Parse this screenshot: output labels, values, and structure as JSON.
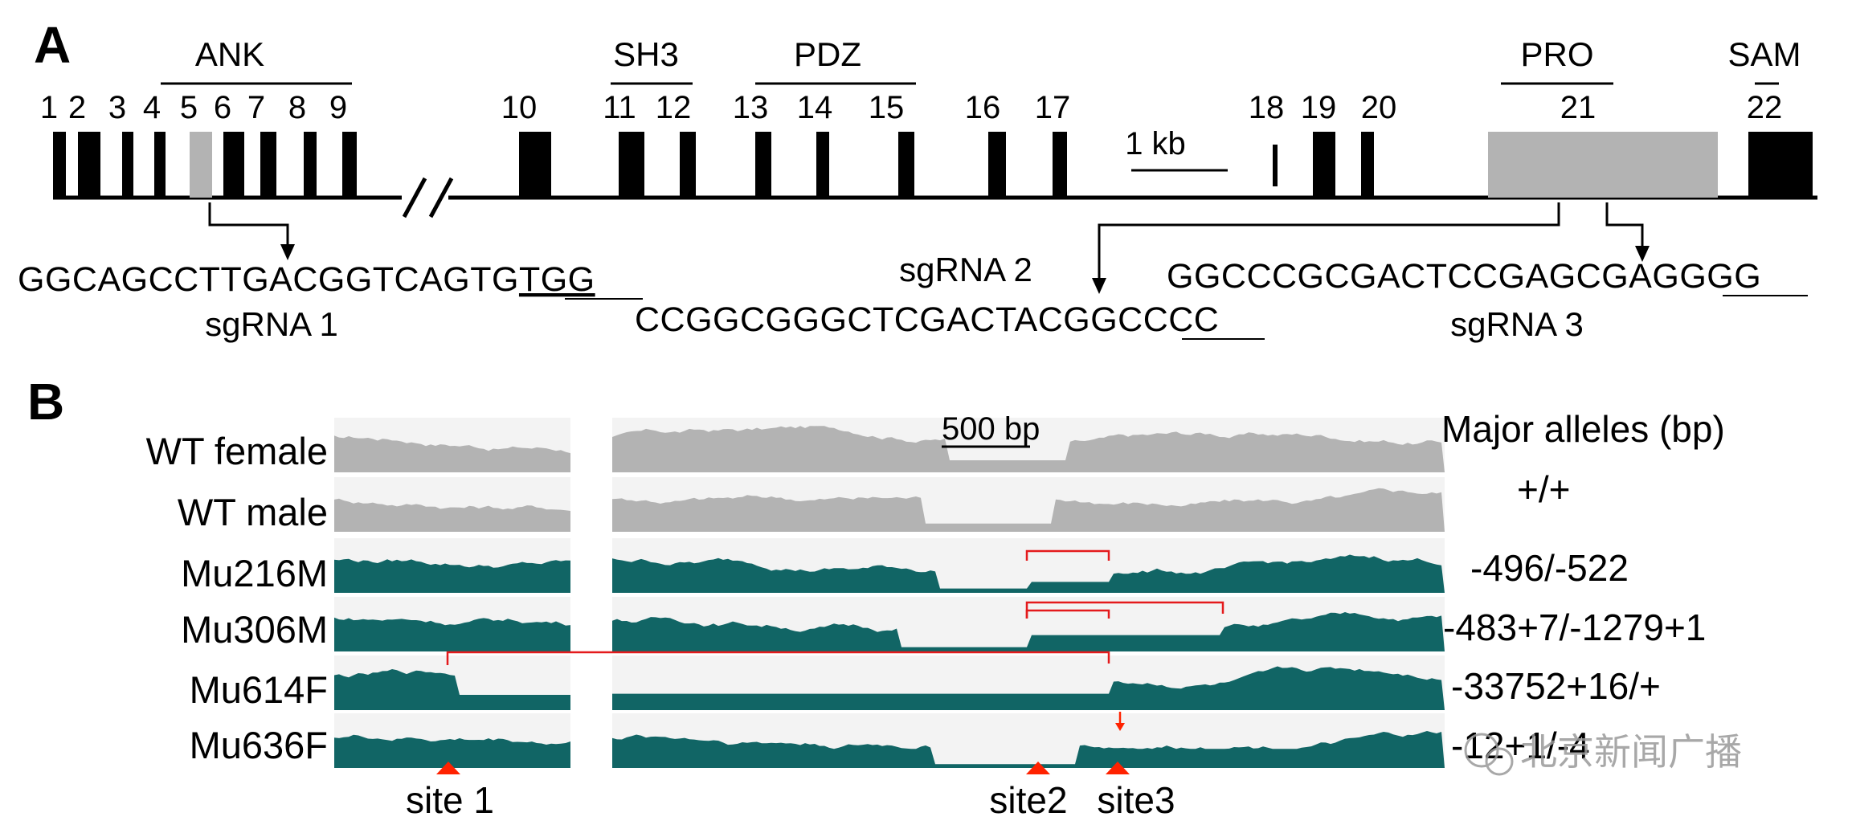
{
  "panel_a": {
    "label": "A",
    "domains": [
      {
        "name": "ANK",
        "x1": 200,
        "x2": 438
      },
      {
        "name": "SH3",
        "x1": 760,
        "x2": 862
      },
      {
        "name": "PDZ",
        "x1": 940,
        "x2": 1140
      },
      {
        "name": "PRO",
        "x1": 1868,
        "x2": 2008
      },
      {
        "name": "SAM",
        "x1": 2196,
        "x2": 2224
      }
    ],
    "exon_numbers": [
      "1",
      "2",
      "3",
      "4",
      "5",
      "6",
      "7",
      "8",
      "9",
      "10",
      "11",
      "12",
      "13",
      "14",
      "15",
      "16",
      "17",
      "18",
      "19",
      "20",
      "21",
      "22"
    ],
    "scale_label": "1 kb",
    "sgrna1": {
      "label": "sgRNA 1",
      "seq_main": "GGCAGCCTTGACGGTCAGTG",
      "pam": "TGG"
    },
    "sgrna2": {
      "label": "sgRNA 2",
      "seq_main": "CCGGCGGGCTCGACTACGGC",
      "pam": "CCC"
    },
    "sgrna3": {
      "label": "sgRNA 3",
      "seq_main": "GGCCCGCGACTCCGAGCGAG",
      "pam": "GGG"
    }
  },
  "panel_b": {
    "label": "B",
    "scale_label": "500 bp",
    "alleles_header": "Major alleles (bp)",
    "rows": [
      {
        "name": "WT female",
        "allele": "",
        "color": "#b3b3b3"
      },
      {
        "name": "WT male",
        "allele": "+/+",
        "color": "#b3b3b3"
      },
      {
        "name": "Mu216M",
        "allele": "-496/-522",
        "color": "#116565"
      },
      {
        "name": "Mu306M",
        "allele": "-483+7/-1279+1",
        "color": "#116565"
      },
      {
        "name": "Mu614F",
        "allele": "-33752+16/+",
        "color": "#116565"
      },
      {
        "name": "Mu636F",
        "allele": "-12+1/-4",
        "color": "#116565"
      }
    ],
    "sites": [
      "site 1",
      "site2",
      "site3"
    ],
    "marker_color": "#ff2200",
    "deletion_color": "#e41a1c"
  },
  "watermark": "北京新闻广播"
}
